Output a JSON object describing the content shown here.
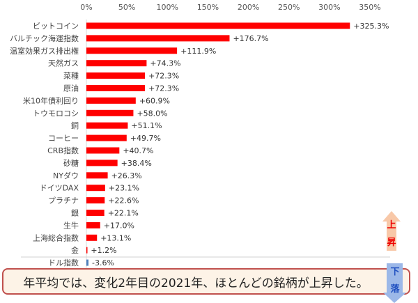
{
  "chart_data": {
    "type": "bar",
    "orientation": "horizontal",
    "categories": [
      "ビットコイン",
      "バルチック海運指数",
      "温室効果ガス排出権",
      "天然ガス",
      "菜種",
      "原油",
      "米10年債利回り",
      "トウモロコシ",
      "銅",
      "コーヒー",
      "CRB指数",
      "砂糖",
      "NYダウ",
      "ドイツDAX",
      "プラチナ",
      "銀",
      "生牛",
      "上海総合指数",
      "金",
      "ドル指数"
    ],
    "values": [
      325.3,
      176.7,
      111.9,
      74.3,
      72.3,
      72.3,
      60.9,
      58.0,
      51.1,
      49.7,
      40.7,
      38.4,
      26.3,
      23.1,
      22.6,
      22.1,
      17.0,
      13.1,
      1.2,
      -3.6
    ],
    "labels": [
      "+325.3%",
      "+176.7%",
      "+111.9%",
      "+74.3%",
      "+72.3%",
      "+72.3%",
      "+60.9%",
      "+58.0%",
      "+51.1%",
      "+49.7%",
      "+40.7%",
      "+38.4%",
      "+26.3%",
      "+23.1%",
      "+22.6%",
      "+22.1%",
      "+17.0%",
      "+13.1%",
      "+1.2%",
      "-3.6%"
    ],
    "xticks": [
      "0%",
      "50%",
      "100%",
      "150%",
      "200%",
      "250%",
      "300%",
      "350%"
    ],
    "xlim": [
      0,
      350
    ],
    "colors": {
      "positive": "#ff0000",
      "negative": "#4f81bd"
    }
  },
  "callout": "年平均では、変化2年目の2021年、ほとんどの銘柄が上昇した。",
  "up_arrow": [
    "上",
    "昇"
  ],
  "down_arrow": [
    "下",
    "落"
  ]
}
